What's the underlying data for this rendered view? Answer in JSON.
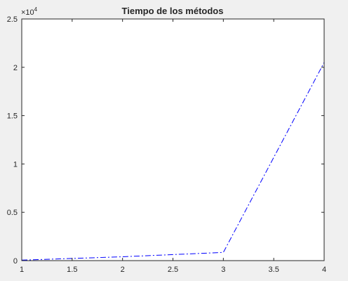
{
  "chart_data": {
    "type": "line",
    "title": "Tiempo de los métodos",
    "xlabel": "",
    "ylabel": "",
    "x": [
      1,
      2,
      3,
      4
    ],
    "series": [
      {
        "values": [
          50,
          400,
          850,
          20500
        ],
        "color": "#0000ff",
        "line_style": "dash-dot"
      }
    ],
    "xlim": [
      1,
      4
    ],
    "ylim": [
      0,
      25000
    ],
    "x_ticks": [
      1,
      1.5,
      2,
      2.5,
      3,
      3.5,
      4
    ],
    "x_tick_labels": [
      "1",
      "1.5",
      "2",
      "2.5",
      "3",
      "3.5",
      "4"
    ],
    "y_ticks": [
      0,
      5000,
      10000,
      15000,
      20000,
      25000
    ],
    "y_tick_labels": [
      "0",
      "0.5",
      "1",
      "1.5",
      "2",
      "2.5"
    ],
    "y_exponent_base": "×10",
    "y_exponent_power": "4",
    "grid": false,
    "legend": false
  },
  "colors": {
    "figure_background": "#f0f0f0",
    "axes_background": "#ffffff",
    "axes_edge": "#262626",
    "line": "#0000ff"
  }
}
